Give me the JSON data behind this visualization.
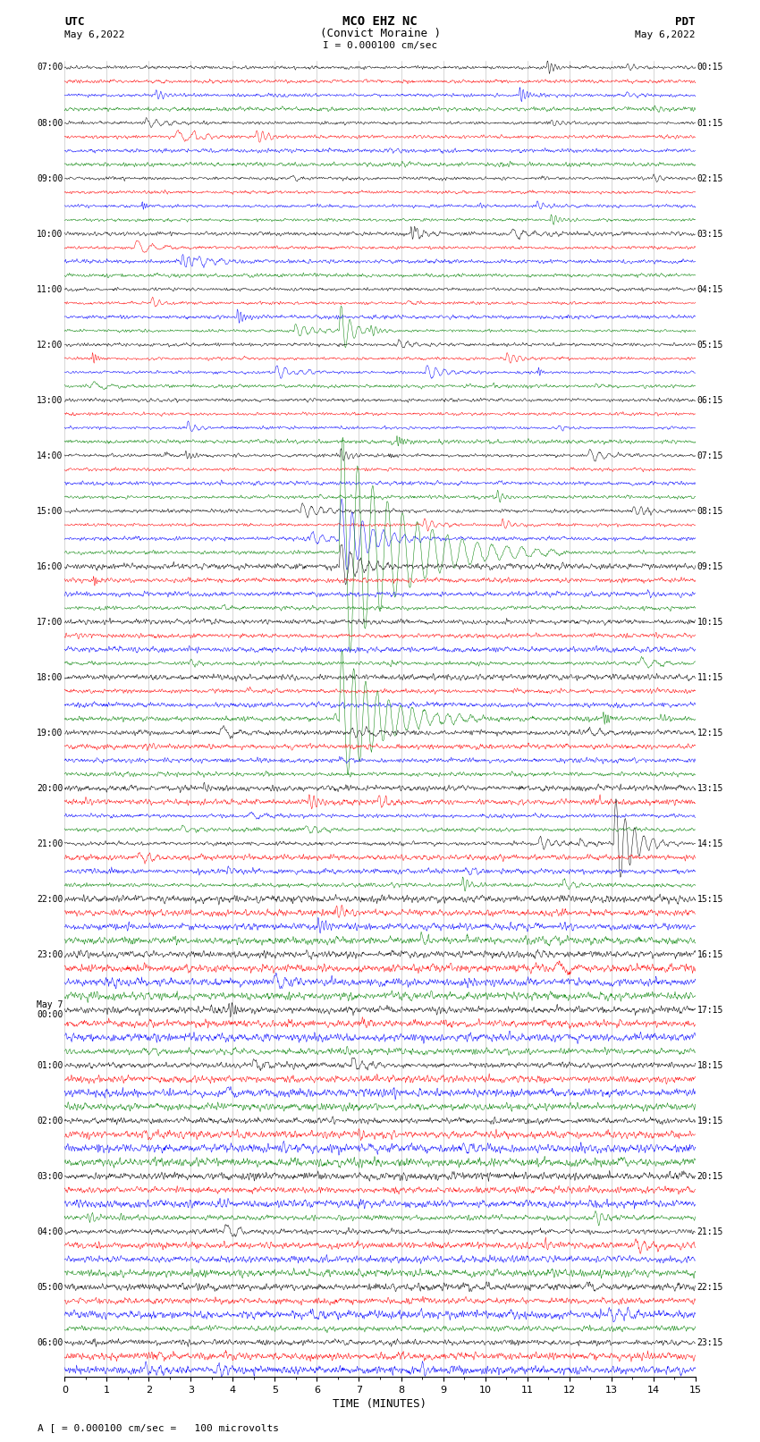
{
  "title_line1": "MCO EHZ NC",
  "title_line2": "(Convict Moraine )",
  "scale_label": "I = 0.000100 cm/sec",
  "bottom_label": "TIME (MINUTES)",
  "footer_label": "A [ = 0.000100 cm/sec =   100 microvolts",
  "num_rows": 95,
  "trace_duration_min": 15,
  "bg_color": "white",
  "trace_color_order": [
    "black",
    "red",
    "blue",
    "green"
  ],
  "random_seed": 42,
  "left_times": [
    "07:00",
    "",
    "",
    "",
    "08:00",
    "",
    "",
    "",
    "09:00",
    "",
    "",
    "",
    "10:00",
    "",
    "",
    "",
    "11:00",
    "",
    "",
    "",
    "12:00",
    "",
    "",
    "",
    "13:00",
    "",
    "",
    "",
    "14:00",
    "",
    "",
    "",
    "15:00",
    "",
    "",
    "",
    "16:00",
    "",
    "",
    "",
    "17:00",
    "",
    "",
    "",
    "18:00",
    "",
    "",
    "",
    "19:00",
    "",
    "",
    "",
    "20:00",
    "",
    "",
    "",
    "21:00",
    "",
    "",
    "",
    "22:00",
    "",
    "",
    "",
    "23:00",
    "",
    "",
    "",
    "May 7\n00:00",
    "",
    "",
    "",
    "01:00",
    "",
    "",
    "",
    "02:00",
    "",
    "",
    "",
    "03:00",
    "",
    "",
    "",
    "04:00",
    "",
    "",
    "",
    "05:00",
    "",
    "",
    "",
    "06:00",
    "",
    ""
  ],
  "right_times": [
    "00:15",
    "",
    "",
    "",
    "01:15",
    "",
    "",
    "",
    "02:15",
    "",
    "",
    "",
    "03:15",
    "",
    "",
    "",
    "04:15",
    "",
    "",
    "",
    "05:15",
    "",
    "",
    "",
    "06:15",
    "",
    "",
    "",
    "07:15",
    "",
    "",
    "",
    "08:15",
    "",
    "",
    "",
    "09:15",
    "",
    "",
    "",
    "10:15",
    "",
    "",
    "",
    "11:15",
    "",
    "",
    "",
    "12:15",
    "",
    "",
    "",
    "13:15",
    "",
    "",
    "",
    "14:15",
    "",
    "",
    "",
    "15:15",
    "",
    "",
    "",
    "16:15",
    "",
    "",
    "",
    "17:15",
    "",
    "",
    "",
    "18:15",
    "",
    "",
    "",
    "19:15",
    "",
    "",
    "",
    "20:15",
    "",
    "",
    "",
    "21:15",
    "",
    "",
    "",
    "22:15",
    "",
    "",
    "",
    "23:15",
    "",
    ""
  ]
}
